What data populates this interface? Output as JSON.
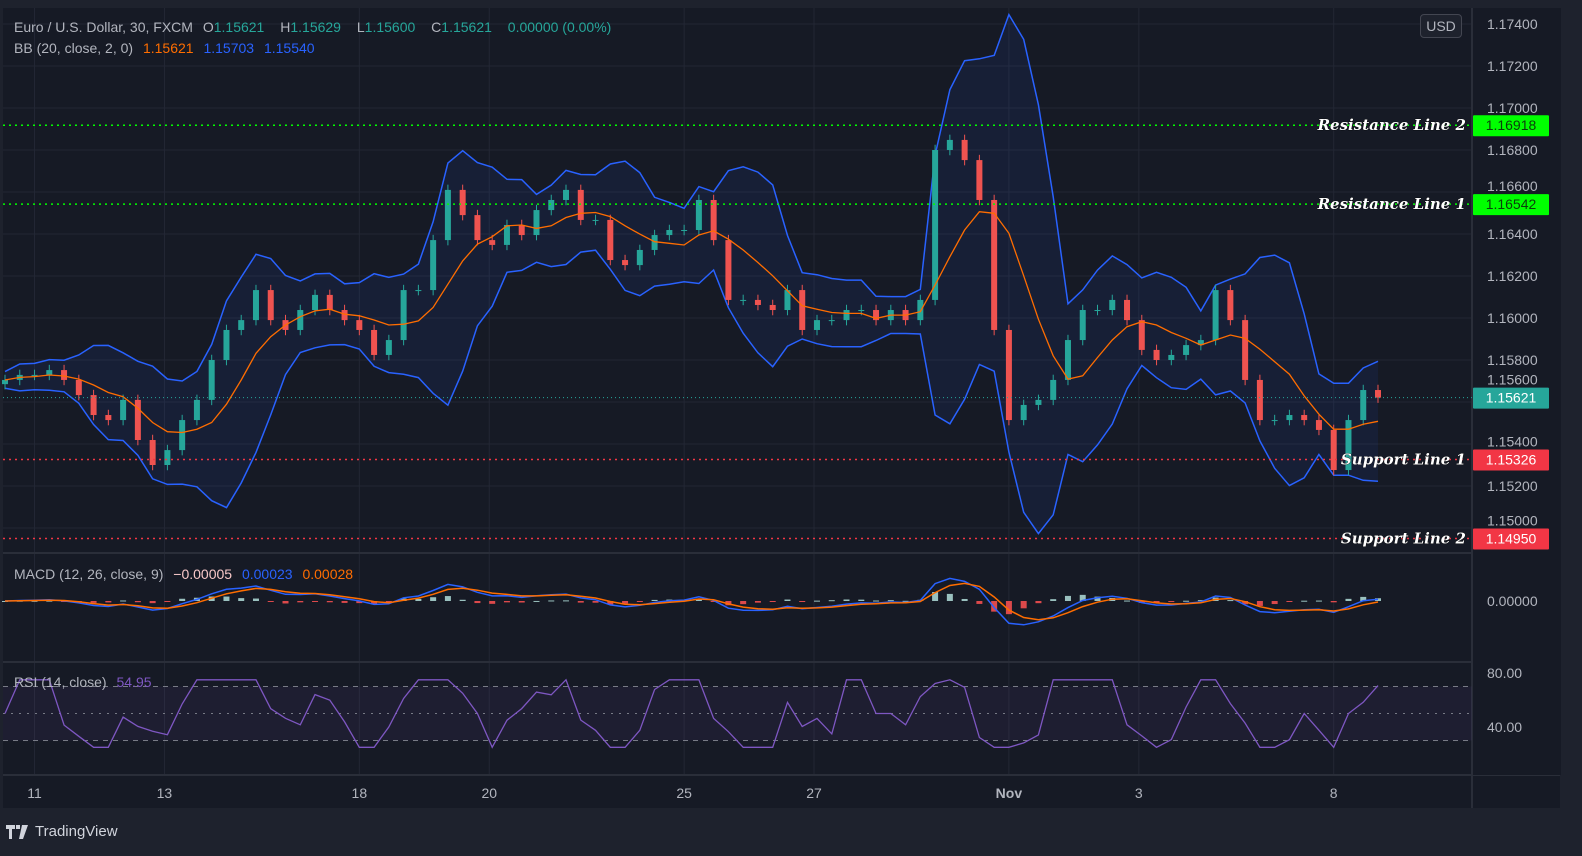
{
  "header": {
    "symbol": "Euro / U.S. Dollar, 30, FXCM",
    "o_label": "O",
    "o": "1.15621",
    "h_label": "H",
    "h": "1.15629",
    "l_label": "L",
    "l": "1.15600",
    "c_label": "C",
    "c": "1.15621",
    "change": "0.00000 (0.00%)"
  },
  "bb": {
    "label": "BB (20, close, 2, 0)",
    "basis": "1.15621",
    "upper": "1.15703",
    "lower": "1.15540"
  },
  "macd": {
    "label": "MACD (12, 26, close, 9)",
    "hist": "−0.00005",
    "macd": "0.00023",
    "signal": "0.00028",
    "zero_tick": "0.00000"
  },
  "rsi": {
    "label": "RSI (14, close)",
    "value": "54.95",
    "ticks": [
      "80.00",
      "40.00"
    ]
  },
  "currency": "USD",
  "brand": "TradingView",
  "colors": {
    "up": "#26a69a",
    "down": "#ef5350",
    "bb_band": "#2962ff",
    "bb_basis": "#ff6d00",
    "resistance": "#00ff00",
    "support": "#f23645",
    "rsi": "#7e57c2",
    "background": "#161a25"
  },
  "chart_data": {
    "type": "candlestick",
    "title": "Euro / U.S. Dollar, 30, FXCM",
    "ylim": [
      1.1488,
      1.175
    ],
    "y_ticks": [
      "1.17400",
      "1.17200",
      "1.17000",
      "1.16800",
      "1.16600",
      "1.16400",
      "1.16200",
      "1.16000",
      "1.15800",
      "1.15600",
      "1.15400",
      "1.15200",
      "1.15000"
    ],
    "x_ticks": [
      {
        "label": "11",
        "at_index": 2
      },
      {
        "label": "13",
        "at_index": 10.8
      },
      {
        "label": "18",
        "at_index": 24
      },
      {
        "label": "20",
        "at_index": 32.8
      },
      {
        "label": "25",
        "at_index": 46
      },
      {
        "label": "27",
        "at_index": 54.8
      },
      {
        "label": "Nov",
        "at_index": 68
      },
      {
        "label": "3",
        "at_index": 76.8
      },
      {
        "label": "8",
        "at_index": 90
      }
    ],
    "close": [
      1.15705,
      1.15729,
      1.15729,
      1.15752,
      1.15705,
      1.15633,
      1.15538,
      1.15514,
      1.1561,
      1.15419,
      1.153,
      1.15371,
      1.15514,
      1.1561,
      1.158,
      1.15943,
      1.1599,
      1.16133,
      1.1599,
      1.15943,
      1.16038,
      1.1611,
      1.16038,
      1.1599,
      1.15943,
      1.15824,
      1.15895,
      1.16133,
      1.16133,
      1.16371,
      1.1661,
      1.1649,
      1.16371,
      1.16348,
      1.16443,
      1.16395,
      1.16514,
      1.16562,
      1.1661,
      1.16467,
      1.16467,
      1.16276,
      1.16252,
      1.16324,
      1.16395,
      1.16419,
      1.16419,
      1.16562,
      1.16371,
      1.16086,
      1.16086,
      1.16062,
      1.16038,
      1.16133,
      1.15943,
      1.1599,
      1.1599,
      1.16038,
      1.16038,
      1.1599,
      1.16038,
      1.1599,
      1.16086,
      1.168,
      1.16848,
      1.16752,
      1.16562,
      1.15943,
      1.15514,
      1.15586,
      1.1561,
      1.15705,
      1.15895,
      1.16038,
      1.16038,
      1.16086,
      1.1599,
      1.15848,
      1.158,
      1.15824,
      1.15871,
      1.15895,
      1.16133,
      1.1599,
      1.15705,
      1.15514,
      1.15514,
      1.15538,
      1.15514,
      1.15467,
      1.15276,
      1.15514,
      1.15657,
      1.15621
    ],
    "last_price": {
      "value": 1.15621,
      "label": "1.15621"
    },
    "levels": [
      {
        "name": "Resistance Line 2",
        "value": 1.16918,
        "label": "1.16918",
        "kind": "resistance"
      },
      {
        "name": "Resistance Line 1",
        "value": 1.16542,
        "label": "1.16542",
        "kind": "resistance"
      },
      {
        "name": "Support Line 1",
        "value": 1.15326,
        "label": "1.15326",
        "kind": "support"
      },
      {
        "name": "Support Line 2",
        "value": 1.1495,
        "label": "1.14950",
        "kind": "support"
      }
    ],
    "rsi_bands": [
      70,
      50,
      30
    ]
  }
}
